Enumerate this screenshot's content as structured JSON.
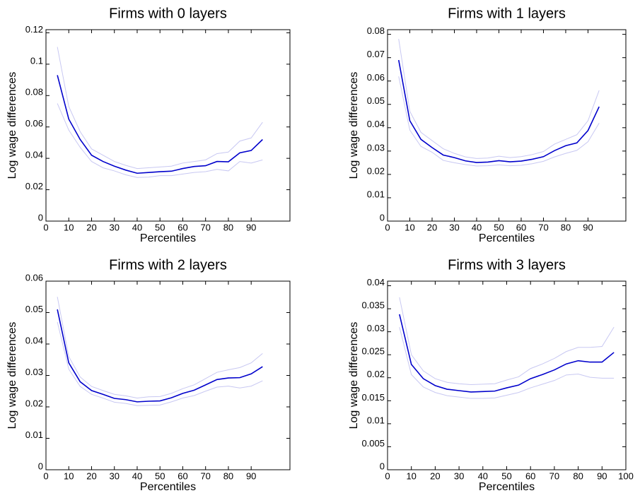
{
  "chart_data": [
    {
      "type": "line",
      "title": "Firms with 0 layers",
      "xlabel": "Percentiles",
      "ylabel": "Log wage differences",
      "x": [
        5,
        10,
        15,
        20,
        25,
        30,
        35,
        40,
        45,
        50,
        55,
        60,
        65,
        70,
        75,
        80,
        85,
        90,
        95
      ],
      "series": [
        {
          "color": "#c8c8f2",
          "values": [
            0.111,
            0.073,
            0.057,
            0.046,
            0.042,
            0.038,
            0.0355,
            0.0335,
            0.034,
            0.0345,
            0.035,
            0.037,
            0.038,
            0.039,
            0.043,
            0.044,
            0.051,
            0.053,
            0.063
          ]
        },
        {
          "color": "#c8c8f2",
          "values": [
            0.075,
            0.058,
            0.047,
            0.038,
            0.034,
            0.032,
            0.0295,
            0.0278,
            0.028,
            0.029,
            0.029,
            0.03,
            0.031,
            0.0315,
            0.033,
            0.032,
            0.038,
            0.037,
            0.039
          ]
        },
        {
          "color": "#0000cc",
          "values": [
            0.093,
            0.065,
            0.052,
            0.042,
            0.038,
            0.035,
            0.0325,
            0.0305,
            0.031,
            0.0315,
            0.0318,
            0.0335,
            0.0348,
            0.0353,
            0.038,
            0.0378,
            0.0435,
            0.045,
            0.052
          ]
        }
      ],
      "xlim": [
        0,
        107
      ],
      "xticks": [
        0,
        10,
        20,
        30,
        40,
        50,
        60,
        70,
        80,
        90
      ],
      "ylim": [
        0,
        0.122
      ],
      "yticks": [
        0,
        0.02,
        0.04,
        0.06,
        0.08,
        0.1,
        0.12
      ]
    },
    {
      "type": "line",
      "title": "Firms with 1 layers",
      "xlabel": "Percentiles",
      "ylabel": "Log wage differences",
      "x": [
        5,
        10,
        15,
        20,
        25,
        30,
        35,
        40,
        45,
        50,
        55,
        60,
        65,
        70,
        75,
        80,
        85,
        90,
        95
      ],
      "series": [
        {
          "color": "#c8c8f2",
          "values": [
            0.078,
            0.047,
            0.038,
            0.0345,
            0.031,
            0.029,
            0.0275,
            0.0268,
            0.027,
            0.0278,
            0.0272,
            0.0276,
            0.0285,
            0.0298,
            0.033,
            0.035,
            0.037,
            0.043,
            0.056
          ]
        },
        {
          "color": "#c8c8f2",
          "values": [
            0.062,
            0.039,
            0.032,
            0.0295,
            0.026,
            0.025,
            0.0242,
            0.0236,
            0.0237,
            0.0241,
            0.0237,
            0.0239,
            0.0246,
            0.0256,
            0.0275,
            0.029,
            0.0303,
            0.034,
            0.042
          ]
        },
        {
          "color": "#0000cc",
          "values": [
            0.069,
            0.043,
            0.035,
            0.0315,
            0.0283,
            0.0272,
            0.0258,
            0.0251,
            0.0253,
            0.0259,
            0.0254,
            0.0257,
            0.0265,
            0.0276,
            0.0302,
            0.0323,
            0.0335,
            0.0388,
            0.049
          ]
        }
      ],
      "xlim": [
        0,
        107
      ],
      "xticks": [
        0,
        10,
        20,
        30,
        40,
        50,
        60,
        70,
        80,
        90
      ],
      "ylim": [
        0,
        0.082
      ],
      "yticks": [
        0,
        0.01,
        0.02,
        0.03,
        0.04,
        0.05,
        0.06,
        0.07,
        0.08
      ]
    },
    {
      "type": "line",
      "title": "Firms with 2 layers",
      "xlabel": "Percentiles",
      "ylabel": "Log wage differences",
      "x": [
        5,
        10,
        15,
        20,
        25,
        30,
        35,
        40,
        45,
        50,
        55,
        60,
        65,
        70,
        75,
        80,
        85,
        90,
        95
      ],
      "series": [
        {
          "color": "#c8c8f2",
          "values": [
            0.055,
            0.036,
            0.0295,
            0.0265,
            0.0252,
            0.024,
            0.0235,
            0.0228,
            0.0232,
            0.0233,
            0.0243,
            0.0258,
            0.027,
            0.029,
            0.031,
            0.0318,
            0.0325,
            0.034,
            0.037
          ]
        },
        {
          "color": "#c8c8f2",
          "values": [
            0.047,
            0.032,
            0.0265,
            0.024,
            0.0228,
            0.0215,
            0.0211,
            0.0204,
            0.0205,
            0.0206,
            0.0216,
            0.0228,
            0.0236,
            0.025,
            0.0263,
            0.0266,
            0.026,
            0.0266,
            0.0283
          ]
        },
        {
          "color": "#0000cc",
          "values": [
            0.051,
            0.034,
            0.028,
            0.0252,
            0.024,
            0.0227,
            0.0223,
            0.0216,
            0.0218,
            0.0219,
            0.0229,
            0.0243,
            0.0253,
            0.027,
            0.0287,
            0.0292,
            0.0293,
            0.0305,
            0.0328
          ]
        }
      ],
      "xlim": [
        0,
        107
      ],
      "xticks": [
        0,
        10,
        20,
        30,
        40,
        50,
        60,
        70,
        80,
        90
      ],
      "ylim": [
        0,
        0.06
      ],
      "yticks": [
        0,
        0.01,
        0.02,
        0.03,
        0.04,
        0.05,
        0.06
      ]
    },
    {
      "type": "line",
      "title": "Firms with 3 layers",
      "xlabel": "Percentiles",
      "ylabel": "Log wage differences",
      "x": [
        5,
        10,
        15,
        20,
        25,
        30,
        35,
        40,
        45,
        50,
        55,
        60,
        65,
        70,
        75,
        80,
        85,
        90,
        95
      ],
      "series": [
        {
          "color": "#c8c8f2",
          "values": [
            0.0375,
            0.025,
            0.0215,
            0.0198,
            0.019,
            0.0187,
            0.0185,
            0.0186,
            0.0187,
            0.0195,
            0.0202,
            0.022,
            0.023,
            0.0242,
            0.0257,
            0.0266,
            0.0266,
            0.0268,
            0.031
          ]
        },
        {
          "color": "#c8c8f2",
          "values": [
            0.031,
            0.0207,
            0.018,
            0.0168,
            0.0161,
            0.0158,
            0.0155,
            0.0155,
            0.0156,
            0.0162,
            0.0168,
            0.0178,
            0.0186,
            0.0194,
            0.0206,
            0.0208,
            0.0201,
            0.0199,
            0.0199
          ]
        },
        {
          "color": "#0000cc",
          "values": [
            0.0338,
            0.0229,
            0.0198,
            0.0183,
            0.0175,
            0.0172,
            0.0169,
            0.017,
            0.0171,
            0.0178,
            0.0184,
            0.0198,
            0.0207,
            0.0217,
            0.023,
            0.0237,
            0.0234,
            0.0234,
            0.0255
          ]
        }
      ],
      "xlim": [
        0,
        100
      ],
      "xticks": [
        0,
        10,
        20,
        30,
        40,
        50,
        60,
        70,
        80,
        90,
        100
      ],
      "ylim": [
        0,
        0.041
      ],
      "yticks": [
        0,
        0.005,
        0.01,
        0.015,
        0.02,
        0.025,
        0.03,
        0.035,
        0.04
      ]
    }
  ]
}
